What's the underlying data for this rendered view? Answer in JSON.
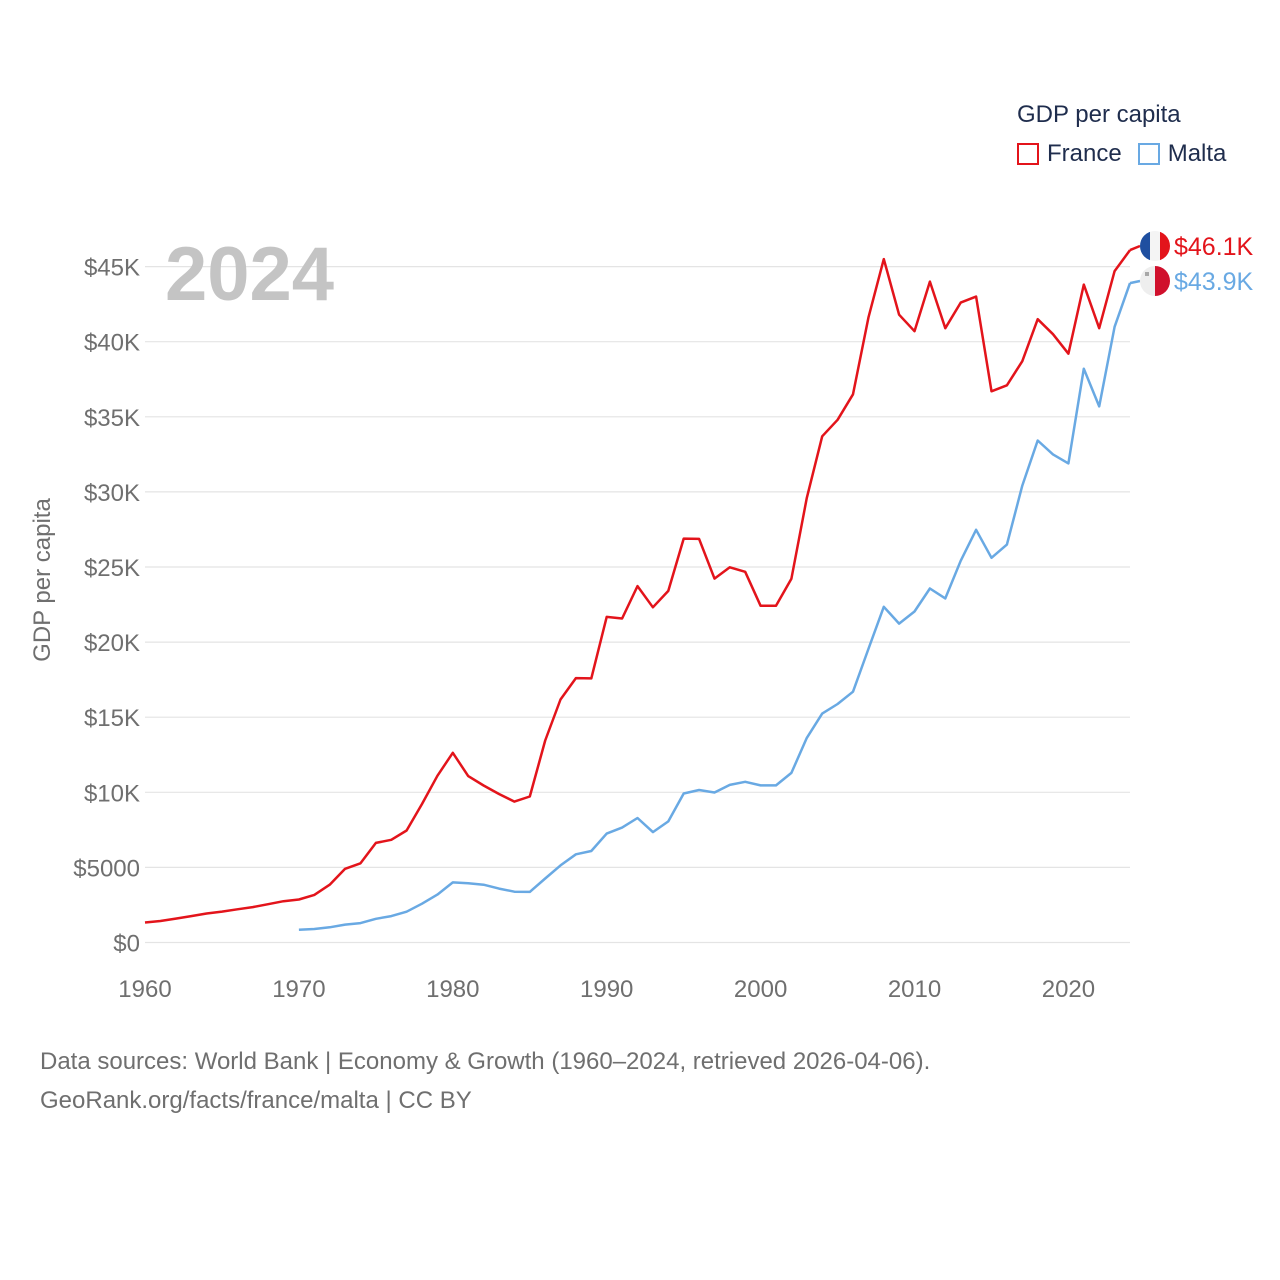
{
  "legend": {
    "title": "GDP per capita",
    "items": [
      {
        "label": "France",
        "color": "#e3141b"
      },
      {
        "label": "Malta",
        "color": "#69a9e3"
      }
    ]
  },
  "footer": {
    "line1": "Data sources: World Bank | Economy & Growth (1960–2024, retrieved 2026-04-06).",
    "line2": "GeoRank.org/facts/france/malta | CC BY"
  },
  "chart_data": {
    "type": "line",
    "year_label": "2024",
    "ylabel": "GDP per capita",
    "xlabel": "",
    "xlim": [
      1960,
      2024
    ],
    "ylim": [
      0,
      45000
    ],
    "x_ticks": [
      1960,
      1970,
      1980,
      1990,
      2000,
      2010,
      2020
    ],
    "y_ticks": [
      {
        "value": 0,
        "label": "$0"
      },
      {
        "value": 5000,
        "label": "$5000"
      },
      {
        "value": 10000,
        "label": "$10K"
      },
      {
        "value": 15000,
        "label": "$15K"
      },
      {
        "value": 20000,
        "label": "$20K"
      },
      {
        "value": 25000,
        "label": "$25K"
      },
      {
        "value": 30000,
        "label": "$30K"
      },
      {
        "value": 35000,
        "label": "$35K"
      },
      {
        "value": 40000,
        "label": "$40K"
      },
      {
        "value": 45000,
        "label": "$45K"
      }
    ],
    "grid": true,
    "series": [
      {
        "name": "France",
        "color": "#e3141b",
        "end_label": "$46.1K",
        "flag": "france-flag",
        "x": [
          1960,
          1961,
          1962,
          1963,
          1964,
          1965,
          1966,
          1967,
          1968,
          1969,
          1970,
          1971,
          1972,
          1973,
          1974,
          1975,
          1976,
          1977,
          1978,
          1979,
          1980,
          1981,
          1982,
          1983,
          1984,
          1985,
          1986,
          1987,
          1988,
          1989,
          1990,
          1991,
          1992,
          1993,
          1994,
          1995,
          1996,
          1997,
          1998,
          1999,
          2000,
          2001,
          2002,
          2003,
          2004,
          2005,
          2006,
          2007,
          2008,
          2009,
          2010,
          2011,
          2012,
          2013,
          2014,
          2015,
          2016,
          2017,
          2018,
          2019,
          2020,
          2021,
          2022,
          2023,
          2024
        ],
        "values": [
          1330,
          1430,
          1590,
          1760,
          1930,
          2060,
          2210,
          2360,
          2550,
          2750,
          2860,
          3170,
          3850,
          4910,
          5270,
          6630,
          6840,
          7460,
          9220,
          11100,
          12630,
          11080,
          10450,
          9890,
          9380,
          9720,
          13450,
          16180,
          17600,
          17580,
          21680,
          21570,
          23730,
          22320,
          23410,
          26890,
          26870,
          24230,
          24980,
          24680,
          22420,
          22420,
          24220,
          29600,
          33700,
          34800,
          36500,
          41600,
          45500,
          41800,
          40700,
          44000,
          40900,
          42600,
          43000,
          36700,
          37100,
          38700,
          41500,
          40500,
          39200,
          43800,
          40900,
          44700,
          46100
        ]
      },
      {
        "name": "Malta",
        "color": "#69a9e3",
        "end_label": "$43.9K",
        "flag": "malta-flag",
        "x": [
          1970,
          1971,
          1972,
          1973,
          1974,
          1975,
          1976,
          1977,
          1978,
          1979,
          1980,
          1981,
          1982,
          1983,
          1984,
          1985,
          1986,
          1987,
          1988,
          1989,
          1990,
          1991,
          1992,
          1993,
          1994,
          1995,
          1996,
          1997,
          1998,
          1999,
          2000,
          2001,
          2002,
          2003,
          2004,
          2005,
          2006,
          2007,
          2008,
          2009,
          2010,
          2011,
          2012,
          2013,
          2014,
          2015,
          2016,
          2017,
          2018,
          2019,
          2020,
          2021,
          2022,
          2023,
          2024
        ],
        "values": [
          850,
          900,
          1010,
          1190,
          1290,
          1580,
          1760,
          2050,
          2580,
          3190,
          4000,
          3950,
          3850,
          3590,
          3380,
          3370,
          4260,
          5130,
          5870,
          6090,
          7250,
          7650,
          8290,
          7350,
          8060,
          9920,
          10150,
          9990,
          10490,
          10700,
          10460,
          10460,
          11290,
          13620,
          15240,
          15880,
          16700,
          19540,
          22350,
          21230,
          22040,
          23570,
          22910,
          25410,
          27480,
          25610,
          26490,
          30420,
          33420,
          32500,
          31900,
          38200,
          35690,
          40990,
          43900
        ]
      }
    ]
  }
}
